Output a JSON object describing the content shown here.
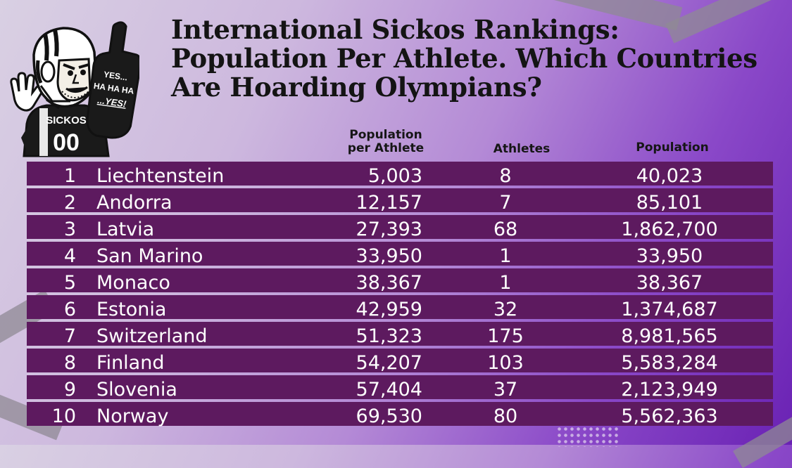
{
  "title": "International Sickos Rankings: Population Per Athlete. Which Countries Are Hoarding Olympians?",
  "mascot": {
    "jersey_text": "SICKOS",
    "jersey_number": "00",
    "sign_line1": "YES...",
    "sign_line2": "HA HA HA",
    "sign_line3": "...YES!"
  },
  "colors": {
    "row_background": "#5d1a5f",
    "row_text": "#ffffff",
    "title_text": "#141414"
  },
  "chart_data": {
    "type": "table",
    "title": "International Sickos Rankings: Population Per Athlete. Which Countries Are Hoarding Olympians?",
    "columns": [
      "",
      "",
      "Population per Athlete",
      "Athletes",
      "Population"
    ],
    "rows": [
      {
        "rank": "1",
        "country": "Liechtenstein",
        "population_per_athlete": "5,003",
        "athletes": "8",
        "population": "40,023"
      },
      {
        "rank": "2",
        "country": "Andorra",
        "population_per_athlete": "12,157",
        "athletes": "7",
        "population": "85,101"
      },
      {
        "rank": "3",
        "country": "Latvia",
        "population_per_athlete": "27,393",
        "athletes": "68",
        "population": "1,862,700"
      },
      {
        "rank": "4",
        "country": "San Marino",
        "population_per_athlete": "33,950",
        "athletes": "1",
        "population": "33,950"
      },
      {
        "rank": "5",
        "country": "Monaco",
        "population_per_athlete": "38,367",
        "athletes": "1",
        "population": "38,367"
      },
      {
        "rank": "6",
        "country": "Estonia",
        "population_per_athlete": "42,959",
        "athletes": "32",
        "population": "1,374,687"
      },
      {
        "rank": "7",
        "country": "Switzerland",
        "population_per_athlete": "51,323",
        "athletes": "175",
        "population": "8,981,565"
      },
      {
        "rank": "8",
        "country": "Finland",
        "population_per_athlete": "54,207",
        "athletes": "103",
        "population": "5,583,284"
      },
      {
        "rank": "9",
        "country": "Slovenia",
        "population_per_athlete": "57,404",
        "athletes": "37",
        "population": "2,123,949"
      },
      {
        "rank": "10",
        "country": "Norway",
        "population_per_athlete": "69,530",
        "athletes": "80",
        "population": "5,562,363"
      }
    ]
  }
}
